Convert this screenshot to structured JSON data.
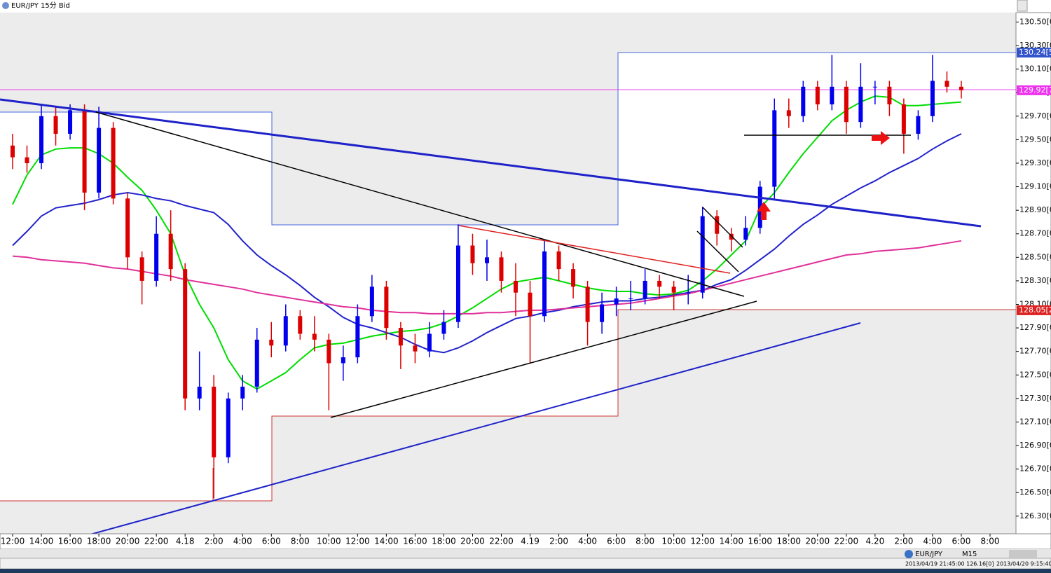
{
  "chart_data": {
    "type": "candlestick",
    "title": "EUR/JPY 15分 Bid",
    "categories": [
      "12:00",
      null,
      "14:00",
      null,
      "16:00",
      null,
      "18:00",
      null,
      "20:00",
      null,
      "22:00",
      null,
      "4.18",
      null,
      "2:00",
      null,
      "4:00",
      null,
      "6:00",
      null,
      "8:00",
      null,
      "10:00",
      null,
      "12:00",
      null,
      "14:00",
      null,
      "16:00",
      null,
      "18:00",
      null,
      "20:00",
      null,
      "22:00",
      null,
      "4.19",
      null,
      "2:00",
      null,
      "4:00",
      null,
      "6:00",
      null,
      "8:00",
      null,
      "10:00",
      null,
      "12:00",
      null,
      "14:00",
      null,
      "16:00",
      null,
      "18:00",
      null,
      "20:00",
      null,
      "22:00",
      null,
      "4.20",
      null,
      "2:00",
      null,
      "4:00",
      null,
      "6:00",
      null,
      "8:00"
    ],
    "open": [
      129.45,
      129.35,
      129.3,
      129.7,
      129.55,
      129.75,
      129.05,
      129.6,
      129.0,
      128.5,
      128.3,
      128.7,
      128.4,
      127.3,
      127.4,
      126.8,
      127.3,
      127.4,
      127.8,
      127.75,
      128.0,
      127.85,
      127.8,
      127.6,
      127.65,
      128.0,
      128.25,
      127.9,
      127.75,
      127.7,
      127.85,
      127.95,
      128.6,
      128.45,
      128.5,
      128.3,
      128.2,
      128.0,
      128.55,
      128.4,
      128.25,
      127.95,
      128.1,
      128.15,
      128.15,
      128.3,
      128.25,
      128.2,
      128.2,
      128.85,
      128.7,
      128.65,
      128.75,
      129.1,
      129.75,
      129.7,
      129.95,
      129.8,
      129.95,
      129.65,
      129.95,
      129.95,
      129.8,
      129.55,
      129.7,
      130.0,
      129.95,
      null,
      null
    ],
    "high": [
      129.55,
      129.45,
      129.8,
      129.78,
      129.8,
      129.8,
      129.78,
      129.65,
      129.05,
      128.55,
      128.85,
      128.9,
      128.45,
      127.7,
      127.5,
      127.35,
      127.5,
      127.9,
      127.95,
      128.1,
      128.05,
      128.0,
      127.85,
      127.75,
      128.1,
      128.35,
      128.3,
      127.95,
      127.85,
      127.95,
      128.05,
      128.78,
      128.7,
      128.65,
      128.55,
      128.45,
      128.3,
      128.65,
      128.6,
      128.45,
      128.3,
      128.2,
      128.25,
      128.3,
      128.4,
      128.35,
      128.3,
      128.35,
      128.93,
      128.9,
      128.75,
      128.85,
      129.15,
      129.85,
      129.85,
      130.0,
      130.0,
      130.22,
      130.0,
      130.15,
      130.0,
      130.0,
      129.85,
      129.75,
      130.22,
      130.08,
      130.0,
      null,
      null
    ],
    "low": [
      129.25,
      129.22,
      129.25,
      129.45,
      129.5,
      128.9,
      129.0,
      128.95,
      128.4,
      128.1,
      128.25,
      128.3,
      127.2,
      127.2,
      126.45,
      126.75,
      127.2,
      127.35,
      127.65,
      127.7,
      127.8,
      127.7,
      127.2,
      127.45,
      127.6,
      127.95,
      127.8,
      127.55,
      127.6,
      127.65,
      127.8,
      127.9,
      128.35,
      128.3,
      128.2,
      128.0,
      127.6,
      127.95,
      128.3,
      128.15,
      127.75,
      127.85,
      128.0,
      128.05,
      128.1,
      128.15,
      128.05,
      128.1,
      128.15,
      128.6,
      128.55,
      128.6,
      128.7,
      129.0,
      129.6,
      129.65,
      129.75,
      129.75,
      129.55,
      129.6,
      129.8,
      129.7,
      129.38,
      129.5,
      129.65,
      129.9,
      129.85,
      null,
      null
    ],
    "close": [
      129.35,
      129.3,
      129.7,
      129.55,
      129.75,
      129.05,
      129.6,
      129.0,
      128.5,
      128.3,
      128.7,
      128.4,
      127.3,
      127.4,
      126.8,
      127.3,
      127.4,
      127.8,
      127.75,
      128.0,
      127.85,
      127.8,
      127.6,
      127.65,
      128.0,
      128.25,
      127.9,
      127.75,
      127.7,
      127.85,
      127.95,
      128.6,
      128.45,
      128.5,
      128.3,
      128.2,
      128.0,
      128.55,
      128.4,
      128.25,
      127.95,
      128.1,
      128.15,
      128.15,
      128.3,
      128.25,
      128.2,
      128.2,
      128.85,
      128.7,
      128.65,
      128.75,
      129.1,
      129.75,
      129.7,
      129.95,
      129.8,
      129.95,
      129.65,
      129.95,
      129.95,
      129.8,
      129.55,
      129.7,
      130.0,
      129.95,
      129.92,
      null,
      null
    ],
    "up_color": "#0000ee",
    "down_color": "#dd0000",
    "series": [
      {
        "color": "#00dd00",
        "values": [
          128.95,
          129.2,
          129.37,
          129.42,
          129.43,
          129.43,
          129.38,
          129.3,
          129.18,
          129.07,
          128.9,
          128.7,
          128.35,
          128.1,
          127.9,
          127.63,
          127.45,
          127.38,
          127.45,
          127.52,
          127.63,
          127.73,
          127.76,
          127.77,
          127.8,
          127.83,
          127.85,
          127.87,
          127.88,
          127.9,
          127.94,
          128.0,
          128.07,
          128.15,
          128.23,
          128.29,
          128.31,
          128.33,
          128.3,
          128.27,
          128.24,
          128.22,
          128.21,
          128.21,
          128.19,
          128.18,
          128.19,
          128.22,
          128.3,
          128.4,
          128.52,
          128.64,
          128.92,
          129.05,
          129.22,
          129.38,
          129.52,
          129.66,
          129.75,
          129.82,
          129.87,
          129.86,
          129.79,
          129.79,
          129.8,
          129.81,
          129.82,
          null,
          null
        ]
      },
      {
        "color": "#2222cc",
        "values": [
          128.6,
          128.72,
          128.85,
          128.92,
          128.94,
          128.96,
          128.99,
          129.03,
          129.05,
          129.03,
          129.0,
          128.98,
          128.94,
          128.91,
          128.88,
          128.78,
          128.64,
          128.52,
          128.43,
          128.35,
          128.26,
          128.16,
          128.08,
          127.99,
          127.93,
          127.9,
          127.86,
          127.82,
          127.76,
          127.71,
          127.69,
          127.73,
          127.79,
          127.86,
          127.92,
          127.98,
          128.0,
          128.03,
          128.05,
          128.08,
          128.1,
          128.12,
          128.13,
          128.13,
          128.15,
          128.16,
          128.18,
          128.2,
          128.22,
          128.27,
          128.31,
          128.39,
          128.48,
          128.57,
          128.68,
          128.78,
          128.86,
          128.95,
          129.02,
          129.09,
          129.15,
          129.22,
          129.28,
          129.34,
          129.42,
          129.49,
          129.55,
          null,
          null
        ]
      },
      {
        "color": "#e0309a",
        "values": [
          128.51,
          128.5,
          128.48,
          128.47,
          128.46,
          128.45,
          128.43,
          128.41,
          128.4,
          128.38,
          128.36,
          128.34,
          128.31,
          128.29,
          128.27,
          128.25,
          128.23,
          128.2,
          128.18,
          128.16,
          128.14,
          128.12,
          128.1,
          128.08,
          128.07,
          128.05,
          128.04,
          128.03,
          128.03,
          128.02,
          128.02,
          128.02,
          128.02,
          128.03,
          128.03,
          128.04,
          128.05,
          128.05,
          128.06,
          128.07,
          128.08,
          128.09,
          128.1,
          128.11,
          128.13,
          128.15,
          128.17,
          128.19,
          128.22,
          128.25,
          128.28,
          128.31,
          128.34,
          128.37,
          128.4,
          128.43,
          128.46,
          128.49,
          128.52,
          128.53,
          128.55,
          128.56,
          128.57,
          128.58,
          128.6,
          128.62,
          128.64,
          null,
          null
        ]
      }
    ],
    "ylim": [
      126.15,
      130.58
    ],
    "yticks": [
      {
        "value": 126.3,
        "label": "126.30[0"
      },
      {
        "value": 126.5,
        "label": "126.50[0"
      },
      {
        "value": 126.7,
        "label": "126.70[0"
      },
      {
        "value": 126.9,
        "label": "126.90[0"
      },
      {
        "value": 127.1,
        "label": "127.10[0"
      },
      {
        "value": 127.3,
        "label": "127.30[0"
      },
      {
        "value": 127.5,
        "label": "127.50[0"
      },
      {
        "value": 127.7,
        "label": "127.70[0"
      },
      {
        "value": 127.9,
        "label": "127.90[0"
      },
      {
        "value": 128.1,
        "label": "128.10[0"
      },
      {
        "value": 128.3,
        "label": "128.30[0"
      },
      {
        "value": 128.5,
        "label": "128.50[0"
      },
      {
        "value": 128.7,
        "label": "128.70[0"
      },
      {
        "value": 128.9,
        "label": "128.90[0"
      },
      {
        "value": 129.1,
        "label": "129.10[0"
      },
      {
        "value": 129.3,
        "label": "129.30[0"
      },
      {
        "value": 129.5,
        "label": "129.50[0"
      },
      {
        "value": 129.7,
        "label": "129.70[0"
      },
      {
        "value": 129.9,
        "label": "129.90[0"
      },
      {
        "value": 130.1,
        "label": "130.10[0"
      },
      {
        "value": 130.3,
        "label": "130.30[0"
      },
      {
        "value": 130.5,
        "label": "130.50[0"
      }
    ],
    "grid": false,
    "price_markers": [
      {
        "value": 130.24,
        "label": "130.24[5",
        "color": "#3355cc"
      },
      {
        "value": 129.92,
        "label": "129.92[7",
        "color": "#ee33ee"
      },
      {
        "value": 128.05,
        "label": "128.05[2",
        "color": "#dd2222"
      }
    ]
  },
  "status_bar": {
    "symbol": "EUR/JPY",
    "timeframe": "M15",
    "cursor": "2013/04/19 21:45:00    126.16[0]",
    "clock": "2013/04/20 9:15:40"
  }
}
